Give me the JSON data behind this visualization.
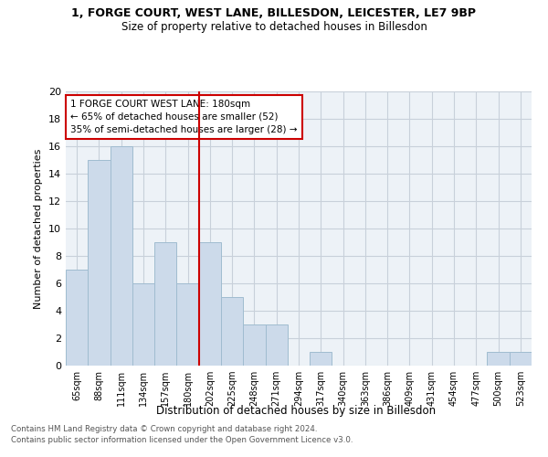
{
  "title1": "1, FORGE COURT, WEST LANE, BILLESDON, LEICESTER, LE7 9BP",
  "title2": "Size of property relative to detached houses in Billesdon",
  "xlabel": "Distribution of detached houses by size in Billesdon",
  "ylabel": "Number of detached properties",
  "categories": [
    "65sqm",
    "88sqm",
    "111sqm",
    "134sqm",
    "157sqm",
    "180sqm",
    "202sqm",
    "225sqm",
    "248sqm",
    "271sqm",
    "294sqm",
    "317sqm",
    "340sqm",
    "363sqm",
    "386sqm",
    "409sqm",
    "431sqm",
    "454sqm",
    "477sqm",
    "500sqm",
    "523sqm"
  ],
  "values": [
    7,
    15,
    16,
    6,
    9,
    6,
    9,
    5,
    3,
    3,
    0,
    1,
    0,
    0,
    0,
    0,
    0,
    0,
    0,
    1,
    1
  ],
  "bar_color": "#ccdaea",
  "bar_edge_color": "#a0bcd0",
  "annotation_line1": "1 FORGE COURT WEST LANE: 180sqm",
  "annotation_line2": "← 65% of detached houses are smaller (52)",
  "annotation_line3": "35% of semi-detached houses are larger (28) →",
  "annotation_box_color": "#ffffff",
  "annotation_box_edge_color": "#cc0000",
  "vline_color": "#cc0000",
  "vline_x": 5.5,
  "ylim": [
    0,
    20
  ],
  "yticks": [
    0,
    2,
    4,
    6,
    8,
    10,
    12,
    14,
    16,
    18,
    20
  ],
  "footer1": "Contains HM Land Registry data © Crown copyright and database right 2024.",
  "footer2": "Contains public sector information licensed under the Open Government Licence v3.0.",
  "bg_color": "#edf2f7",
  "grid_color": "#c8d0da"
}
